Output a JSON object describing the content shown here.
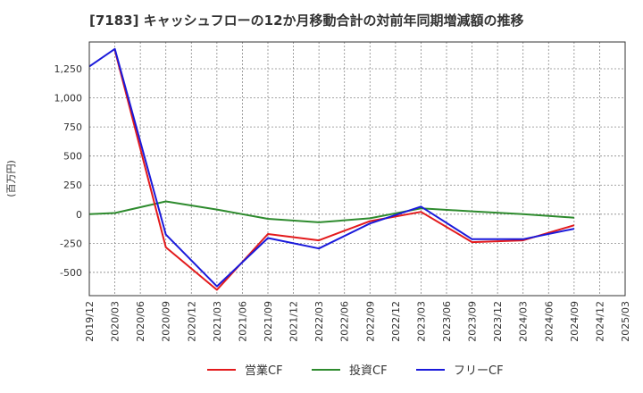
{
  "chart_data": {
    "type": "line",
    "title": "[7183]  キャッシュフローの12か月移動合計の対前年同期増減額の推移",
    "ylabel": "(百万円)",
    "xlabel": "",
    "ylim": [
      -700,
      1480
    ],
    "yticks": [
      -500,
      -250,
      0,
      250,
      500,
      750,
      1000,
      1250
    ],
    "ytick_labels": [
      "-500",
      "-250",
      "0",
      "250",
      "500",
      "750",
      "1,000",
      "1,250"
    ],
    "x_ticks": [
      "2019/12",
      "2020/03",
      "2020/06",
      "2020/09",
      "2020/12",
      "2021/03",
      "2021/06",
      "2021/09",
      "2021/12",
      "2022/03",
      "2022/06",
      "2022/09",
      "2022/12",
      "2023/03",
      "2023/06",
      "2023/09",
      "2023/12",
      "2024/03",
      "2024/06",
      "2024/09",
      "2024/12",
      "2025/03"
    ],
    "grid": true,
    "legend": "bottom",
    "series": [
      {
        "name": "営業CF",
        "color": "#e31a1c",
        "x": [
          "2020/03",
          "2020/09",
          "2021/03",
          "2021/09",
          "2022/03",
          "2022/09",
          "2023/03",
          "2023/09",
          "2024/03",
          "2024/09"
        ],
        "values": [
          1410,
          -285,
          -650,
          -170,
          -225,
          -60,
          20,
          -240,
          -225,
          -95
        ]
      },
      {
        "name": "投資CF",
        "color": "#2e8b2e",
        "x": [
          "2019/12",
          "2020/03",
          "2020/09",
          "2021/03",
          "2021/09",
          "2022/03",
          "2022/09",
          "2023/03",
          "2023/09",
          "2024/03",
          "2024/09"
        ],
        "values": [
          0,
          10,
          110,
          40,
          -40,
          -70,
          -35,
          50,
          25,
          0,
          -30
        ]
      },
      {
        "name": "フリーCF",
        "color": "#1a1adb",
        "x": [
          "2019/12",
          "2020/03",
          "2020/09",
          "2021/03",
          "2021/09",
          "2022/03",
          "2022/09",
          "2023/03",
          "2023/09",
          "2024/03",
          "2024/09"
        ],
        "values": [
          1270,
          1420,
          -175,
          -620,
          -205,
          -295,
          -80,
          65,
          -215,
          -215,
          -125
        ]
      }
    ]
  }
}
